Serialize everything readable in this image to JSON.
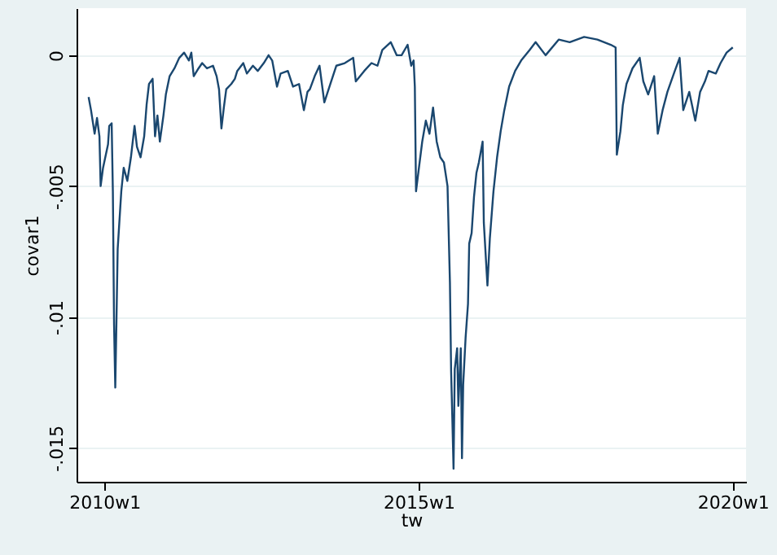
{
  "chart_data": {
    "type": "line",
    "xlabel": "tw",
    "ylabel": "covar1",
    "x": [
      "2009-10-01",
      "2009-10-15",
      "2009-11-05",
      "2009-11-19",
      "2009-12-03",
      "2009-12-10",
      "2009-12-24",
      "2010-01-22",
      "2010-01-29",
      "2010-02-12",
      "2010-02-19",
      "2010-02-26",
      "2010-03-05",
      "2010-03-12",
      "2010-03-19",
      "2010-04-09",
      "2010-04-23",
      "2010-05-14",
      "2010-06-04",
      "2010-06-25",
      "2010-07-09",
      "2010-07-30",
      "2010-08-20",
      "2010-09-03",
      "2010-09-17",
      "2010-10-08",
      "2010-10-22",
      "2010-11-05",
      "2010-11-19",
      "2010-12-10",
      "2010-12-24",
      "2011-01-15",
      "2011-02-12",
      "2011-03-12",
      "2011-04-09",
      "2011-05-07",
      "2011-05-21",
      "2011-06-04",
      "2011-07-02",
      "2011-07-23",
      "2011-08-20",
      "2011-09-24",
      "2011-10-15",
      "2011-10-29",
      "2011-11-12",
      "2011-11-26",
      "2011-12-10",
      "2012-01-08",
      "2012-01-29",
      "2012-02-12",
      "2012-03-18",
      "2012-04-08",
      "2012-05-13",
      "2012-06-10",
      "2012-07-15",
      "2012-08-12",
      "2012-09-02",
      "2012-09-30",
      "2012-10-21",
      "2012-12-02",
      "2013-01-01",
      "2013-02-05",
      "2013-03-05",
      "2013-03-26",
      "2013-04-09",
      "2013-05-07",
      "2013-06-04",
      "2013-07-02",
      "2013-08-06",
      "2013-09-10",
      "2013-10-29",
      "2013-12-17",
      "2014-01-01",
      "2014-02-19",
      "2014-04-02",
      "2014-05-07",
      "2014-06-04",
      "2014-07-23",
      "2014-08-27",
      "2014-09-24",
      "2014-10-29",
      "2014-11-19",
      "2014-12-03",
      "2014-12-10",
      "2014-12-17",
      "2015-01-01",
      "2015-01-22",
      "2015-02-12",
      "2015-03-05",
      "2015-03-26",
      "2015-04-16",
      "2015-05-07",
      "2015-05-28",
      "2015-06-18",
      "2015-07-02",
      "2015-07-09",
      "2015-07-16",
      "2015-07-23",
      "2015-07-30",
      "2015-08-13",
      "2015-08-20",
      "2015-09-03",
      "2015-09-10",
      "2015-09-17",
      "2015-10-01",
      "2015-10-15",
      "2015-10-22",
      "2015-11-05",
      "2015-11-19",
      "2015-12-03",
      "2015-12-17",
      "2016-01-08",
      "2016-01-15",
      "2016-02-05",
      "2016-02-19",
      "2016-03-11",
      "2016-04-01",
      "2016-04-22",
      "2016-05-13",
      "2016-06-10",
      "2016-07-15",
      "2016-08-19",
      "2016-10-07",
      "2016-11-11",
      "2017-01-08",
      "2017-03-26",
      "2017-05-28",
      "2017-08-20",
      "2017-11-05",
      "2018-01-22",
      "2018-02-19",
      "2018-02-26",
      "2018-03-19",
      "2018-04-02",
      "2018-04-23",
      "2018-05-28",
      "2018-07-09",
      "2018-07-30",
      "2018-08-27",
      "2018-10-01",
      "2018-10-22",
      "2018-11-19",
      "2018-12-17",
      "2019-01-29",
      "2019-02-26",
      "2019-03-19",
      "2019-04-23",
      "2019-05-28",
      "2019-06-25",
      "2019-07-23",
      "2019-08-13",
      "2019-09-24",
      "2019-10-22",
      "2019-11-26",
      "2020-01-01"
    ],
    "series": [
      {
        "color": "#1a476f",
        "values": [
          -0.0016,
          -0.0021,
          -0.003,
          -0.0024,
          -0.0031,
          -0.005,
          -0.0043,
          -0.0034,
          -0.0027,
          -0.0026,
          -0.0052,
          -0.0103,
          -0.0127,
          -0.0101,
          -0.0074,
          -0.0052,
          -0.0043,
          -0.0048,
          -0.0039,
          -0.0027,
          -0.0035,
          -0.0039,
          -0.0031,
          -0.0019,
          -0.0011,
          -0.0009,
          -0.0031,
          -0.0023,
          -0.0033,
          -0.0023,
          -0.0015,
          -0.0008,
          -0.0005,
          -0.0001,
          0.0001,
          -0.0002,
          0.0001,
          -0.0008,
          -0.0005,
          -0.0003,
          -0.0005,
          -0.0004,
          -0.0008,
          -0.0013,
          -0.0028,
          -0.002,
          -0.0013,
          -0.0011,
          -0.0009,
          -0.0006,
          -0.0003,
          -0.0007,
          -0.0004,
          -0.0006,
          -0.0003,
          0.0,
          -0.0002,
          -0.0012,
          -0.0007,
          -0.0006,
          -0.0012,
          -0.0011,
          -0.0021,
          -0.0014,
          -0.0013,
          -0.0008,
          -0.0004,
          -0.0018,
          -0.0011,
          -0.0004,
          -0.0003,
          -0.0001,
          -0.001,
          -0.0006,
          -0.0003,
          -0.0004,
          0.0002,
          0.0005,
          0.0,
          0.0,
          0.0004,
          -0.0004,
          -0.0002,
          -0.0012,
          -0.0052,
          -0.0044,
          -0.0033,
          -0.0025,
          -0.003,
          -0.002,
          -0.0033,
          -0.0039,
          -0.0041,
          -0.005,
          -0.0087,
          -0.0121,
          -0.0139,
          -0.0158,
          -0.012,
          -0.0112,
          -0.0134,
          -0.0112,
          -0.0154,
          -0.0126,
          -0.0108,
          -0.0095,
          -0.0072,
          -0.0068,
          -0.0054,
          -0.0045,
          -0.0041,
          -0.0033,
          -0.0064,
          -0.0088,
          -0.007,
          -0.0052,
          -0.0039,
          -0.0029,
          -0.0021,
          -0.0012,
          -0.0006,
          -0.0002,
          0.0002,
          0.0005,
          0.0,
          0.0006,
          0.0005,
          0.0007,
          0.0006,
          0.0004,
          0.0003,
          -0.0038,
          -0.0029,
          -0.0019,
          -0.0011,
          -0.0005,
          -0.0001,
          -0.001,
          -0.0015,
          -0.0008,
          -0.003,
          -0.0021,
          -0.0014,
          -0.0006,
          -0.0001,
          -0.0021,
          -0.0014,
          -0.0025,
          -0.0014,
          -0.001,
          -0.0006,
          -0.0007,
          -0.0003,
          0.0001,
          0.0003
        ]
      }
    ],
    "xlim": [
      "2009-07-23",
      "2020-03-18"
    ],
    "ylim": [
      -0.0163,
      0.0018
    ],
    "xticks": [
      {
        "value": "2010-01-01",
        "label": "2010w1"
      },
      {
        "value": "2015-01-01",
        "label": "2015w1"
      },
      {
        "value": "2020-01-01",
        "label": "2020w1"
      }
    ],
    "yticks": [
      {
        "value": -0.015,
        "label": "-.015"
      },
      {
        "value": -0.01,
        "label": "-.01"
      },
      {
        "value": -0.005,
        "label": "-.005"
      },
      0
    ],
    "grid": "y",
    "line_style": "solid",
    "marker": "none"
  }
}
